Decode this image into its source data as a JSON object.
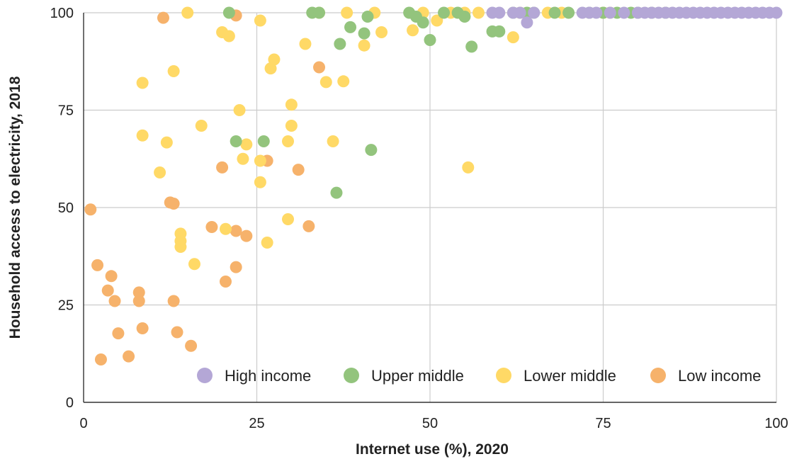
{
  "chart_data": {
    "type": "scatter",
    "xlabel": "Internet use (%), 2020",
    "ylabel": "Household access to electricity, 2018",
    "xlim": [
      0,
      100
    ],
    "ylim": [
      0,
      100
    ],
    "x_ticks": [
      "0",
      "25",
      "50",
      "75",
      "100"
    ],
    "y_ticks": [
      "0",
      "25",
      "50",
      "75",
      "100"
    ],
    "grid": true,
    "legend_position": "bottom-right",
    "series": [
      {
        "name": "High income",
        "color": "#b4a7d6",
        "points": [
          [
            59,
            100
          ],
          [
            60,
            100
          ],
          [
            62,
            100
          ],
          [
            63,
            100
          ],
          [
            64,
            97.5
          ],
          [
            65,
            100
          ],
          [
            72,
            100
          ],
          [
            73,
            100
          ],
          [
            74,
            100
          ],
          [
            76,
            100
          ],
          [
            78,
            100
          ],
          [
            80,
            100
          ],
          [
            81,
            100
          ],
          [
            82,
            100
          ],
          [
            83,
            100
          ],
          [
            84,
            100
          ],
          [
            85,
            100
          ],
          [
            86,
            100
          ],
          [
            87,
            100
          ],
          [
            88,
            100
          ],
          [
            89,
            100
          ],
          [
            90,
            100
          ],
          [
            91,
            100
          ],
          [
            92,
            100
          ],
          [
            93,
            100
          ],
          [
            94,
            100
          ],
          [
            95,
            100
          ],
          [
            96,
            100
          ],
          [
            97,
            100
          ],
          [
            98,
            100
          ],
          [
            99,
            100
          ],
          [
            100,
            100
          ]
        ]
      },
      {
        "name": "Upper middle",
        "color": "#93c47d",
        "points": [
          [
            21,
            100
          ],
          [
            33,
            100
          ],
          [
            34,
            100
          ],
          [
            37,
            92
          ],
          [
            38.5,
            96.3
          ],
          [
            40.5,
            94.7
          ],
          [
            41,
            99
          ],
          [
            41.5,
            64.8
          ],
          [
            36.5,
            53.8
          ],
          [
            22,
            67
          ],
          [
            26,
            67
          ],
          [
            47,
            100
          ],
          [
            48,
            99
          ],
          [
            49,
            97.5
          ],
          [
            50,
            93
          ],
          [
            52,
            100
          ],
          [
            54,
            100
          ],
          [
            55,
            99
          ],
          [
            56,
            91.3
          ],
          [
            59,
            95.2
          ],
          [
            60,
            95.2
          ],
          [
            62,
            100
          ],
          [
            64,
            100
          ],
          [
            65,
            100
          ],
          [
            68,
            100
          ],
          [
            70,
            100
          ],
          [
            73,
            100
          ],
          [
            75,
            100
          ],
          [
            77,
            100
          ],
          [
            79,
            100
          ],
          [
            80,
            100
          ],
          [
            82,
            100
          ],
          [
            84,
            100
          ]
        ]
      },
      {
        "name": "Lower middle",
        "color": "#ffd966",
        "points": [
          [
            15,
            100
          ],
          [
            34,
            100
          ],
          [
            38,
            100
          ],
          [
            42,
            100
          ],
          [
            25.5,
            98
          ],
          [
            20,
            95
          ],
          [
            21,
            94
          ],
          [
            43,
            95
          ],
          [
            49,
            100
          ],
          [
            51,
            98
          ],
          [
            53,
            100
          ],
          [
            55,
            100
          ],
          [
            57,
            100
          ],
          [
            62,
            93.7
          ],
          [
            63,
            100
          ],
          [
            67,
            100
          ],
          [
            69,
            100
          ],
          [
            75,
            100
          ],
          [
            76,
            100
          ],
          [
            47.5,
            95.5
          ],
          [
            40.5,
            91.6
          ],
          [
            32,
            92
          ],
          [
            27.5,
            88
          ],
          [
            27,
            85.7
          ],
          [
            8.5,
            82
          ],
          [
            13,
            85
          ],
          [
            35,
            82.2
          ],
          [
            37.5,
            82.4
          ],
          [
            22.5,
            75
          ],
          [
            30,
            76.4
          ],
          [
            17,
            71
          ],
          [
            30,
            71
          ],
          [
            8.5,
            68.5
          ],
          [
            12,
            66.7
          ],
          [
            23.5,
            66.2
          ],
          [
            29.5,
            67
          ],
          [
            36,
            67
          ],
          [
            11,
            59
          ],
          [
            23,
            62.5
          ],
          [
            25.5,
            62
          ],
          [
            25.5,
            56.5
          ],
          [
            55.5,
            60.3
          ],
          [
            20.5,
            44.5
          ],
          [
            29.5,
            47
          ],
          [
            14,
            43.3
          ],
          [
            14,
            41.4
          ],
          [
            14,
            39.9
          ],
          [
            26.5,
            41
          ],
          [
            16,
            35.5
          ]
        ]
      },
      {
        "name": "Low income",
        "color": "#f6b26b",
        "points": [
          [
            11.5,
            98.7
          ],
          [
            22,
            99.3
          ],
          [
            34,
            86
          ],
          [
            26.5,
            62
          ],
          [
            31,
            59.7
          ],
          [
            20,
            60.3
          ],
          [
            12.5,
            51.3
          ],
          [
            13,
            51
          ],
          [
            1,
            49.5
          ],
          [
            18.5,
            45
          ],
          [
            22,
            44
          ],
          [
            23.5,
            42.7
          ],
          [
            32.5,
            45.2
          ],
          [
            2,
            35.2
          ],
          [
            4,
            32.4
          ],
          [
            22,
            34.7
          ],
          [
            20.5,
            31
          ],
          [
            3.5,
            28.7
          ],
          [
            8,
            28.2
          ],
          [
            4.5,
            26
          ],
          [
            8,
            26
          ],
          [
            13,
            26
          ],
          [
            8.5,
            19
          ],
          [
            5,
            17.7
          ],
          [
            13.5,
            18
          ],
          [
            6.5,
            11.8
          ],
          [
            2.5,
            11
          ],
          [
            15.5,
            14.5
          ]
        ]
      }
    ]
  }
}
